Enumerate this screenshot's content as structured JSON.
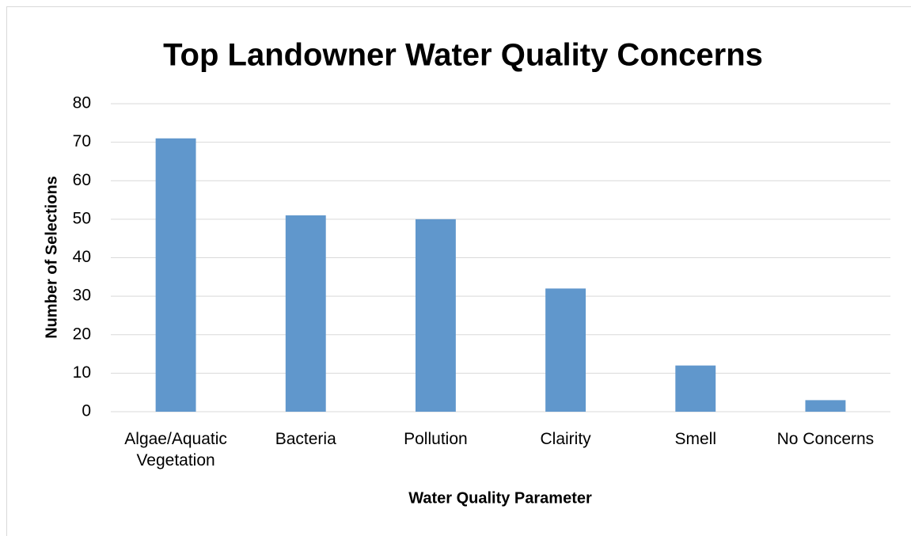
{
  "chart_data": {
    "type": "bar",
    "title": "Top Landowner Water Quality Concerns",
    "x_label": "Water Quality Parameter",
    "y_label": "Number of Selections",
    "categories": [
      "Algae/Aquatic Vegetation",
      "Bacteria",
      "Pollution",
      "Clairity",
      "Smell",
      "No Concerns"
    ],
    "values": [
      71,
      51,
      50,
      32,
      12,
      3
    ],
    "color": "#6097cc",
    "ylim": [
      0,
      80
    ],
    "yticks": [
      0,
      10,
      20,
      30,
      40,
      50,
      60,
      70,
      80
    ],
    "grid": true
  }
}
